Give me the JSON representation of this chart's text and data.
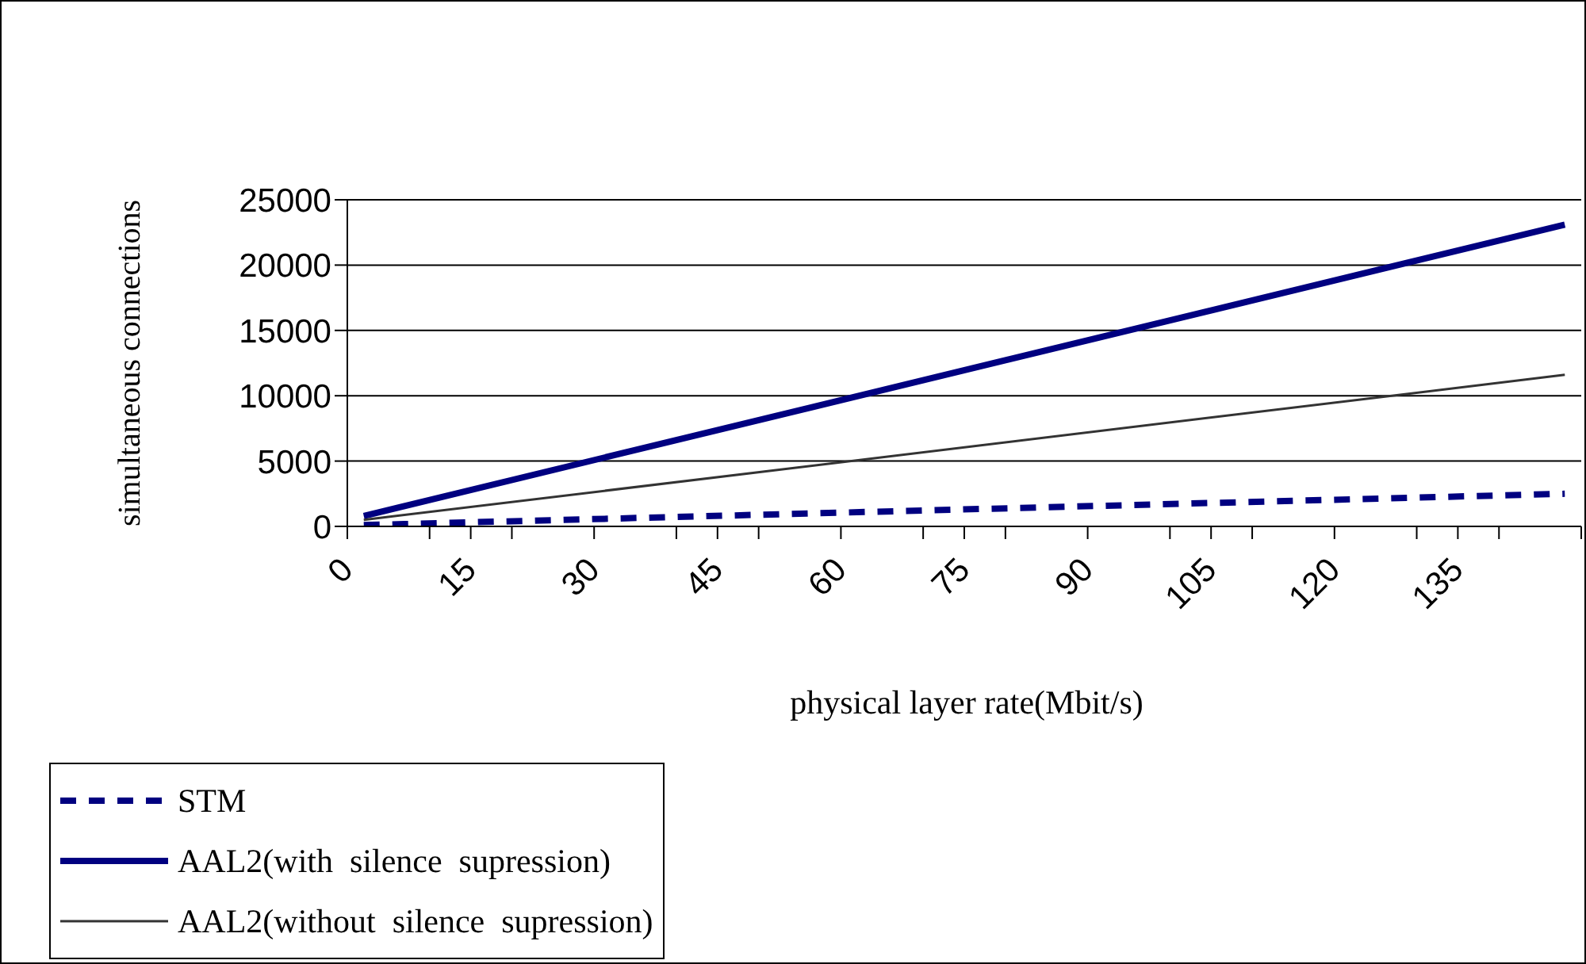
{
  "chart_data": {
    "type": "line",
    "xlabel": "physical layer rate(Mbit/s)",
    "ylabel": "simultaneous connections",
    "xlim": [
      0,
      150
    ],
    "xticks": [
      0,
      {
        "value": 10,
        "label": null
      },
      15,
      {
        "value": 20,
        "label": null
      },
      30,
      {
        "value": 40,
        "label": null
      },
      45,
      {
        "value": 50,
        "label": null
      },
      60,
      {
        "value": 70,
        "label": null
      },
      75,
      {
        "value": 80,
        "label": null
      },
      90,
      {
        "value": 100,
        "label": null
      },
      105,
      {
        "value": 110,
        "label": null
      },
      120,
      {
        "value": 130,
        "label": null
      },
      135,
      {
        "value": 140,
        "label": null
      },
      {
        "value": 150,
        "label": null
      }
    ],
    "x": [
      2,
      148
    ],
    "ylim": [
      0,
      25000
    ],
    "yticks": [
      0,
      5000,
      10000,
      15000,
      20000,
      25000
    ],
    "grid": "y",
    "legend": "bottom left",
    "marker": "none",
    "series": [
      {
        "name": "STM",
        "color": "#000080",
        "line_style": "dashed",
        "values": [
          100,
          2500
        ]
      },
      {
        "name": "AAL2(with  silence  supression)",
        "color": "#000080",
        "line_style": "solid",
        "values": [
          800,
          23100
        ]
      },
      {
        "name": "AAL2(without  silence  supression)",
        "color": "#333333",
        "line_style": "solid",
        "values": [
          500,
          11600
        ]
      }
    ]
  }
}
